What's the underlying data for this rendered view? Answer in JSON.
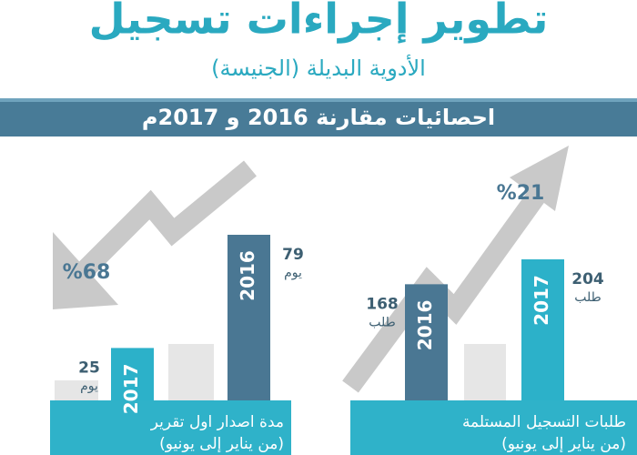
{
  "header": {
    "title": "تطوير إجراءات تسجيل",
    "subtitle": "الأدوية البديلة (الجنيسة)",
    "banner": "احصائيات مقارنة 2016 و 2017م"
  },
  "chart_data": [
    {
      "type": "bar",
      "title": "طلبات التسجيل المستلمة",
      "subtitle": "(من يناير إلى يونيو)",
      "categories": [
        "2016",
        "2017"
      ],
      "values": [
        168,
        204
      ],
      "unit": "طلب",
      "colors": [
        "#4a7793",
        "#2cb1c9"
      ],
      "annotation": "%21"
    },
    {
      "type": "bar",
      "title": "مدة اصدار اول تقرير",
      "subtitle": "(من يناير إلى يونيو)",
      "categories": [
        "2016",
        "2017"
      ],
      "values": [
        79,
        25
      ],
      "unit": "يوم",
      "colors": [
        "#4a7793",
        "#2cb1c9"
      ],
      "annotation": "%68"
    }
  ]
}
